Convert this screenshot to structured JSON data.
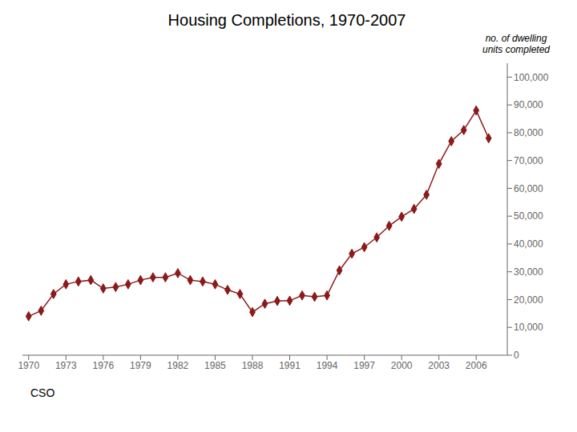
{
  "chart_data": {
    "type": "line",
    "title": "Housing Completions, 1970-2007",
    "ylabel": "no. of dwelling\nunits completed",
    "annotations": [
      "CSO"
    ],
    "x": [
      1970,
      1971,
      1972,
      1973,
      1974,
      1975,
      1976,
      1977,
      1978,
      1979,
      1980,
      1981,
      1982,
      1983,
      1984,
      1985,
      1986,
      1987,
      1988,
      1989,
      1990,
      1991,
      1992,
      1993,
      1994,
      1995,
      1996,
      1997,
      1998,
      1999,
      2000,
      2001,
      2002,
      2003,
      2004,
      2005,
      2006,
      2007
    ],
    "values": [
      14000,
      16000,
      22000,
      25500,
      26500,
      27000,
      24000,
      24500,
      25500,
      27000,
      28000,
      28000,
      29500,
      27000,
      26500,
      25500,
      23500,
      22000,
      15500,
      18500,
      19500,
      19600,
      21500,
      21000,
      21500,
      30500,
      36500,
      38842,
      42349,
      46512,
      49812,
      52602,
      57695,
      68819,
      76954,
      80957,
      88000,
      78027
    ],
    "color": "#8B1A1A",
    "marker": "diamond",
    "line_style": "solid",
    "grid": false,
    "xlim": [
      1969.5,
      2008.5
    ],
    "xticks": [
      1970,
      1973,
      1976,
      1979,
      1982,
      1985,
      1988,
      1991,
      1994,
      1997,
      2000,
      2003,
      2006
    ],
    "ylim": [
      0,
      105000
    ],
    "yticks": [
      0,
      {
        "value": 10000,
        "label": "10,000"
      },
      {
        "value": 20000,
        "label": "20,000"
      },
      {
        "value": 30000,
        "label": "30,000"
      },
      {
        "value": 40000,
        "label": "40,000"
      },
      {
        "value": 50000,
        "label": "50,000"
      },
      {
        "value": 60000,
        "label": "60,000"
      },
      {
        "value": 70000,
        "label": "70,000"
      },
      {
        "value": 80000,
        "label": "80,000"
      },
      {
        "value": 90000,
        "label": "90,000"
      },
      {
        "value": 100000,
        "label": "100,000"
      }
    ]
  }
}
